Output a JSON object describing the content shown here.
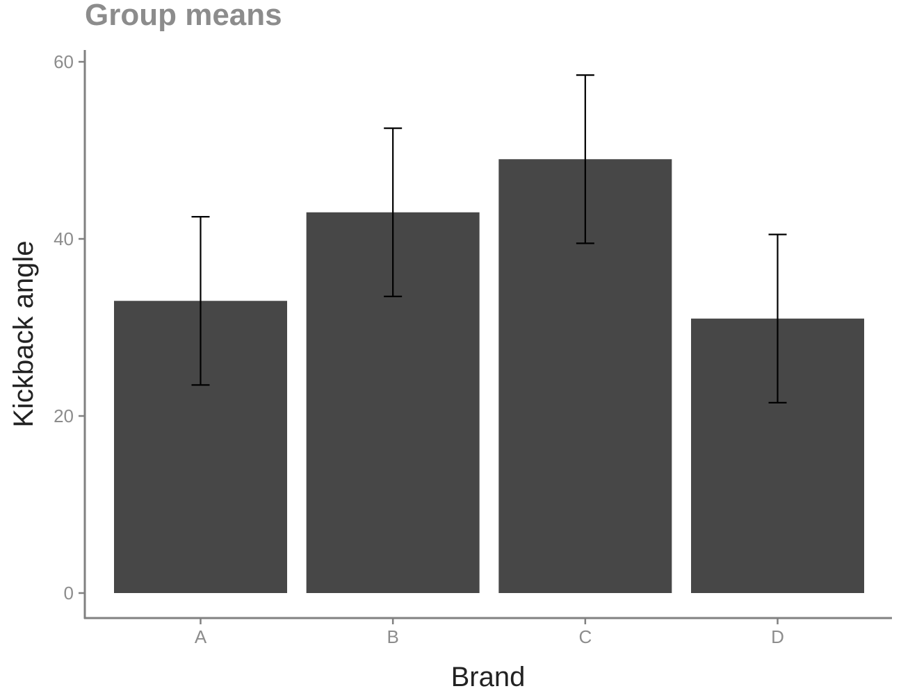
{
  "chart_data": {
    "type": "bar",
    "title": "Group means",
    "xlabel": "Brand",
    "ylabel": "Kickback angle",
    "categories": [
      "A",
      "B",
      "C",
      "D"
    ],
    "values": [
      33,
      43,
      49,
      31
    ],
    "error_bars": {
      "lower": [
        23.5,
        33.5,
        39.5,
        21.5
      ],
      "upper": [
        42.5,
        52.5,
        58.5,
        40.5
      ]
    },
    "y_ticks": [
      0,
      20,
      40,
      60
    ],
    "ylim": [
      -3,
      61.5
    ],
    "grid": false,
    "legend": "none",
    "colors": {
      "bar": "#474747",
      "errorbar": "#000000",
      "axis": "#808080",
      "text_muted": "#8c8c8c",
      "text_dark": "#222222"
    }
  }
}
